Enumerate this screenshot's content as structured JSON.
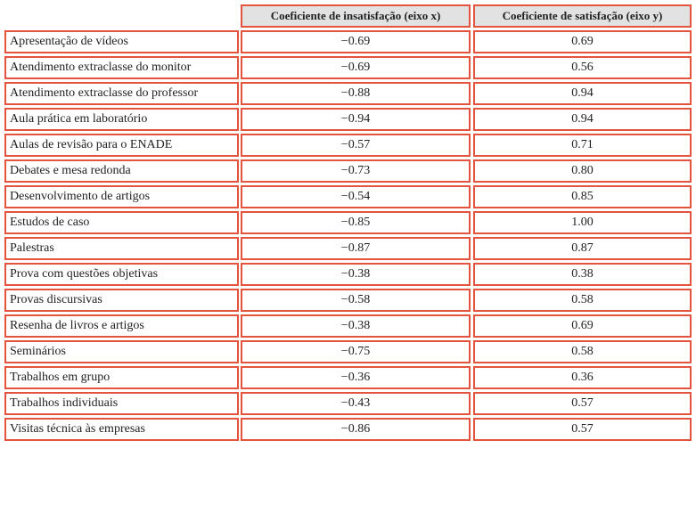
{
  "table": {
    "header": [
      "Coeficiente de insatisfação (eixo x)",
      "Coeficiente de satisfação (eixo y)"
    ],
    "rows": [
      [
        "Apresentação de vídeos",
        "−0.69",
        "0.69"
      ],
      [
        "Atendimento extraclasse do monitor",
        "−0.69",
        "0.56"
      ],
      [
        "Atendimento extraclasse do professor",
        "−0.88",
        "0.94"
      ],
      [
        "Aula prática em laboratório",
        "−0.94",
        "0.94"
      ],
      [
        "Aulas de revisão para o ENADE",
        "−0.57",
        "0.71"
      ],
      [
        "Debates e mesa redonda",
        "−0.73",
        "0.80"
      ],
      [
        "Desenvolvimento de artigos",
        "−0.54",
        "0.85"
      ],
      [
        "Estudos de caso",
        "−0.85",
        "1.00"
      ],
      [
        "Palestras",
        "−0.87",
        "0.87"
      ],
      [
        "Prova com questões objetivas",
        "−0.38",
        "0.38"
      ],
      [
        "Provas discursivas",
        "−0.58",
        "0.58"
      ],
      [
        "Resenha de livros e artigos",
        "−0.38",
        "0.69"
      ],
      [
        "Seminários",
        "−0.75",
        "0.58"
      ],
      [
        "Trabalhos em grupo",
        "−0.36",
        "0.36"
      ],
      [
        "Trabalhos individuais",
        "−0.43",
        "0.57"
      ],
      [
        "Visitas técnica às empresas",
        "−0.86",
        "0.57"
      ]
    ]
  }
}
